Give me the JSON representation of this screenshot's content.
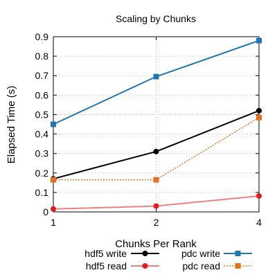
{
  "chart_data": {
    "type": "line",
    "title": "Scaling by Chunks",
    "xlabel": "Chunks Per Rank",
    "ylabel": "Elapsed Time (s)",
    "categories": [
      "1",
      "2",
      "4"
    ],
    "ylim": [
      0,
      0.9
    ],
    "yticks": [
      "0",
      "0.1",
      "0.2",
      "0.3",
      "0.4",
      "0.5",
      "0.6",
      "0.7",
      "0.8",
      "0.9"
    ],
    "grid": true,
    "legend_position": "bottom",
    "series": [
      {
        "name": "hdf5 write",
        "values": [
          0.17,
          0.31,
          0.52
        ],
        "color": "#000000",
        "marker": "circle",
        "dashed": false
      },
      {
        "name": "hdf5 read",
        "values": [
          0.015,
          0.03,
          0.082
        ],
        "color": "#f08080",
        "marker": "circle",
        "marker_color": "#e41a1c",
        "dashed": false
      },
      {
        "name": "pdc write",
        "values": [
          0.45,
          0.695,
          0.88
        ],
        "color": "#1f77b4",
        "marker": "square",
        "dashed": false
      },
      {
        "name": "pdc read",
        "values": [
          0.165,
          0.165,
          0.485
        ],
        "color": "#e6711c",
        "marker": "square",
        "dashed": true
      }
    ]
  }
}
